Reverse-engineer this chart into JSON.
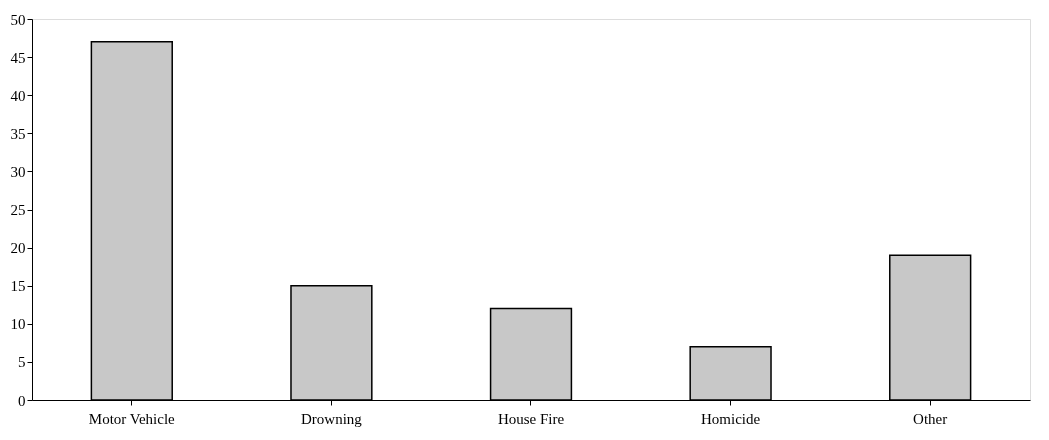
{
  "chart_data": {
    "type": "bar",
    "categories": [
      "Motor Vehicle",
      "Drowning",
      "House Fire",
      "Homicide",
      "Other"
    ],
    "values": [
      47,
      15,
      12,
      7,
      19
    ],
    "color": "#c8c8c8",
    "ylim": [
      0,
      50
    ],
    "yticks": [
      0,
      5,
      10,
      15,
      20,
      25,
      30,
      35,
      40,
      45,
      50
    ],
    "grid": false
  }
}
